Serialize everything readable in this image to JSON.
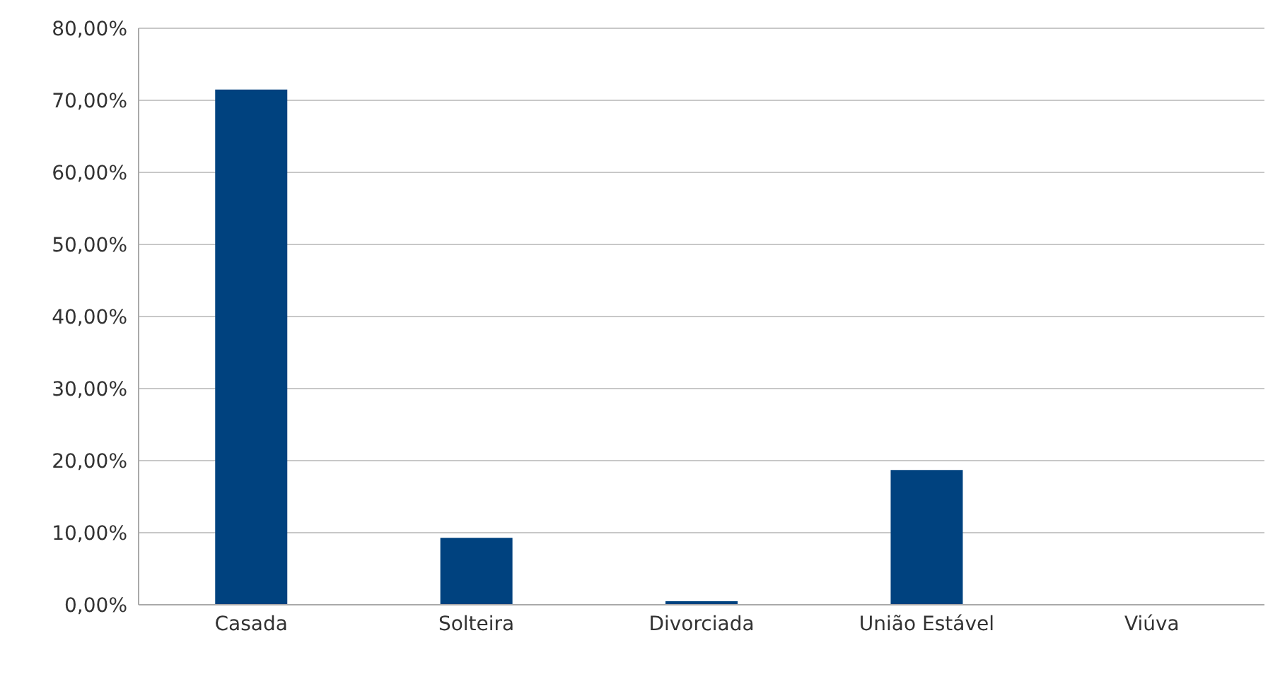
{
  "chart_data": {
    "type": "bar",
    "categories": [
      "Casada",
      "Solteira",
      "Divorciada",
      "União Estável",
      "Viúva"
    ],
    "values": [
      71.5,
      9.3,
      0.5,
      18.7,
      0
    ],
    "color": "#00427f",
    "ylim": [
      0,
      80
    ],
    "yticks": [
      {
        "value": 0,
        "label": "0,00%"
      },
      {
        "value": 10,
        "label": "10,00%"
      },
      {
        "value": 20,
        "label": "20,00%"
      },
      {
        "value": 30,
        "label": "30,00%"
      },
      {
        "value": 40,
        "label": "40,00%"
      },
      {
        "value": 50,
        "label": "50,00%"
      },
      {
        "value": 60,
        "label": "60,00%"
      },
      {
        "value": 70,
        "label": "70,00%"
      },
      {
        "value": 80,
        "label": "80,00%"
      }
    ],
    "grid": "y"
  }
}
